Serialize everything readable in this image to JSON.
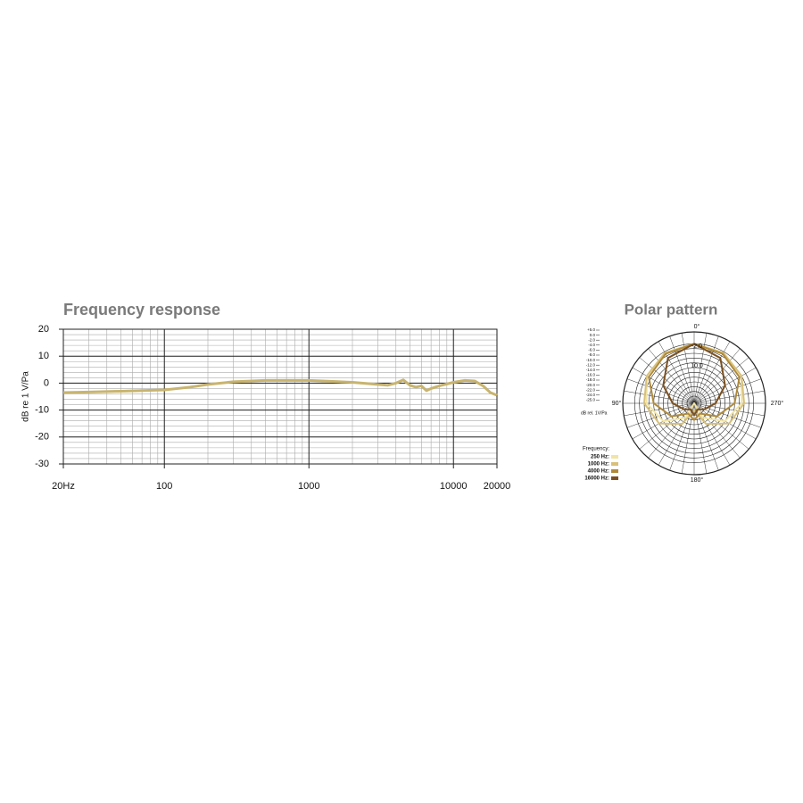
{
  "chart_data": [
    {
      "type": "line",
      "title": "Frequency response",
      "y_label": "dB re 1 V/Pa",
      "log_x": true,
      "grid": true,
      "minor_grid": true,
      "x": [
        20,
        30,
        50,
        100,
        150,
        200,
        300,
        500,
        1000,
        2000,
        3000,
        3500,
        4000,
        4500,
        5000,
        5500,
        6000,
        6500,
        7000,
        8000,
        10000,
        12000,
        14000,
        16000,
        18000,
        20000
      ],
      "series": [
        {
          "name": null,
          "color": "#c8b46e",
          "values": [
            -3.5,
            -3.3,
            -3,
            -2.5,
            -1.5,
            -0.5,
            0.5,
            1,
            1,
            0.3,
            -0.5,
            -0.8,
            0,
            1.2,
            -0.8,
            -1.5,
            -1,
            -2.8,
            -2,
            -1,
            0.3,
            1,
            0.8,
            -1,
            -3.5,
            -4.5
          ]
        }
      ],
      "xlim": [
        20,
        20000
      ],
      "xticks": [
        {
          "value": 20,
          "label": "20Hz"
        },
        100,
        1000,
        10000,
        20000
      ],
      "ylim": [
        -30,
        20
      ],
      "yticks": [
        -30,
        -20,
        -10,
        0,
        10,
        20
      ]
    },
    {
      "type": "polar",
      "title": "Polar pattern",
      "r_label": "dB rel. 1V/Pa",
      "theta": [
        0,
        30,
        60,
        90,
        120,
        150,
        180,
        210,
        240,
        270,
        300,
        330
      ],
      "theta_ticks": [
        {
          "value": 0,
          "label": "0°"
        },
        {
          "value": 90,
          "label": "90°"
        },
        {
          "value": 180,
          "label": "180°"
        },
        {
          "value": 270,
          "label": "270°"
        }
      ],
      "rlim": [
        -25,
        5
      ],
      "rticks": [
        {
          "value": 5,
          "label": "+5.0"
        },
        {
          "value": 0,
          "label": "0.0"
        },
        {
          "value": -2,
          "label": "-2.0"
        },
        {
          "value": -4,
          "label": "-4.0"
        },
        {
          "value": -6,
          "label": "-6.0"
        },
        {
          "value": -8,
          "label": "-8.0"
        },
        {
          "value": -10,
          "label": "-10.0"
        },
        {
          "value": -12,
          "label": "-12.0"
        },
        {
          "value": -14,
          "label": "-14.0"
        },
        {
          "value": -16,
          "label": "-16.0"
        },
        {
          "value": -18,
          "label": "-18.0"
        },
        {
          "value": -20,
          "label": "-20.0"
        },
        {
          "value": -22,
          "label": "-22.0"
        },
        {
          "value": -24,
          "label": "-24.0"
        },
        {
          "value": -25,
          "label": "-25.0"
        }
      ],
      "annotations": [
        "-2.0",
        "10.0"
      ],
      "legend_title": "Frequency:",
      "series": [
        {
          "name": "250 Hz:",
          "color": "#f1e4a4",
          "values": [
            0,
            -0.5,
            -2,
            -5,
            -10,
            -18,
            -25,
            -18,
            -10,
            -5,
            -2,
            -0.5
          ]
        },
        {
          "name": "1000 Hz:",
          "color": "#d8c07a",
          "values": [
            0,
            -0.5,
            -2,
            -4,
            -8,
            -15,
            -22,
            -15,
            -8,
            -4,
            -2,
            -0.5
          ]
        },
        {
          "name": "4000 Hz:",
          "color": "#b08a3a",
          "values": [
            0,
            -1,
            -3,
            -8,
            -14,
            -20,
            -18,
            -20,
            -14,
            -8,
            -3,
            -1
          ]
        },
        {
          "name": "16000 Hz:",
          "color": "#7a5020",
          "values": [
            0,
            -3,
            -10,
            -16,
            -20,
            -22,
            -20,
            -22,
            -20,
            -16,
            -10,
            -3
          ]
        }
      ]
    }
  ]
}
